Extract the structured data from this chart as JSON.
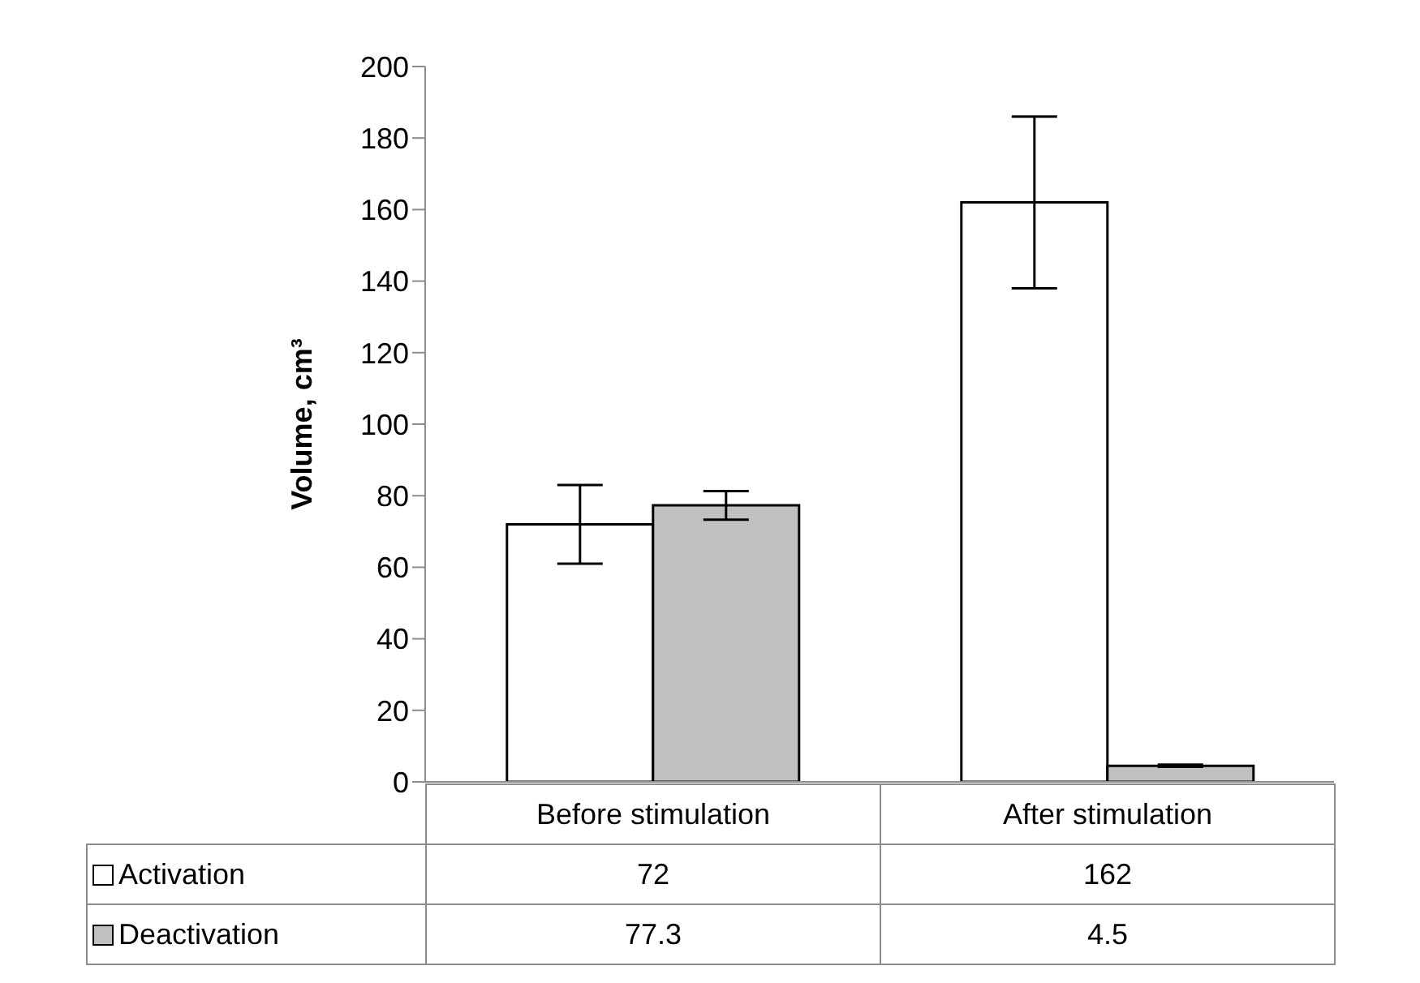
{
  "chart_data": {
    "type": "bar",
    "ylabel": "Volume, cm³",
    "categories": [
      "Before stimulation",
      "After stimulation"
    ],
    "series": [
      {
        "name": "Activation",
        "color": "#ffffff",
        "values": [
          72,
          162
        ],
        "errors": [
          11,
          24
        ]
      },
      {
        "name": "Deactivation",
        "color": "#c0c0c0",
        "values": [
          77.3,
          4.5
        ],
        "errors": [
          4,
          0.3
        ]
      }
    ],
    "ylim": [
      0,
      200
    ],
    "yticks": [
      0,
      20,
      40,
      60,
      80,
      100,
      120,
      140,
      160,
      180,
      200
    ],
    "legend": "bottom",
    "data_labels": true
  }
}
